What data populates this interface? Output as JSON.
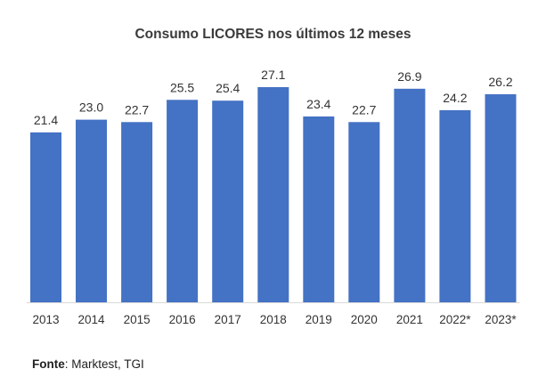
{
  "colors": {
    "bar": "#4472c4",
    "baseline": "#d9d9d9",
    "text": "#333333"
  },
  "chart_data": {
    "type": "bar",
    "title": "Consumo LICORES nos últimos 12 meses",
    "categories": [
      "2013",
      "2014",
      "2015",
      "2016",
      "2017",
      "2018",
      "2019",
      "2020",
      "2021",
      "2022*",
      "2023*"
    ],
    "values": [
      21.4,
      23.0,
      22.7,
      25.5,
      25.4,
      27.1,
      23.4,
      22.7,
      26.9,
      24.2,
      26.2
    ],
    "data_labels": [
      "21.4",
      "23.0",
      "22.7",
      "25.5",
      "25.4",
      "27.1",
      "23.4",
      "22.7",
      "26.9",
      "24.2",
      "26.2"
    ],
    "xlabel": "",
    "ylabel": "",
    "grid": false,
    "legend": "none"
  },
  "source": {
    "label": "Fonte",
    "text": ": Marktest, TGI"
  }
}
